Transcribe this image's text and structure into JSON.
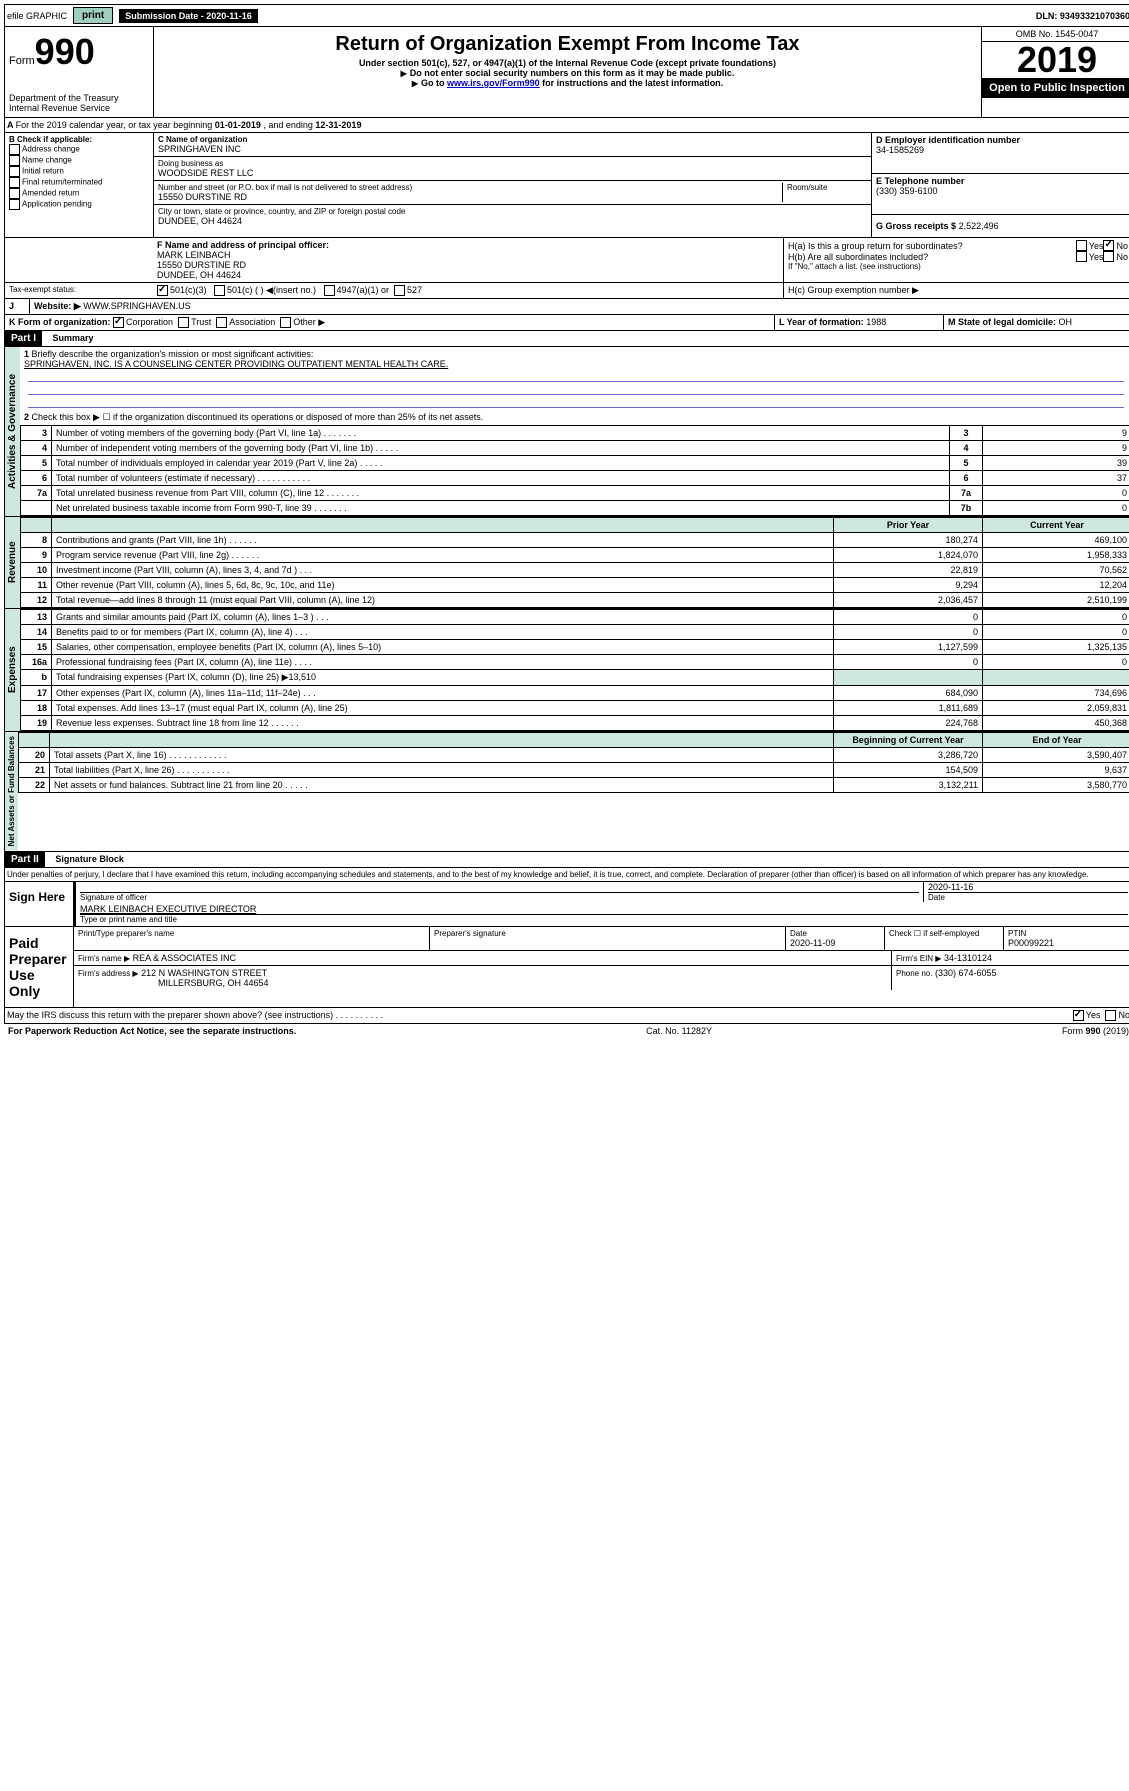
{
  "topbar": {
    "efile": "efile GRAPHIC",
    "print": "print",
    "subdate_label": "Submission Date - 2020-11-16",
    "dln": "DLN: 93493321070360"
  },
  "header": {
    "form_label": "Form",
    "form_number": "990",
    "dept": "Department of the Treasury\nInternal Revenue Service",
    "title": "Return of Organization Exempt From Income Tax",
    "subtitle": "Under section 501(c), 527, or 4947(a)(1) of the Internal Revenue Code (except private foundations)",
    "note1": "Do not enter social security numbers on this form as it may be made public.",
    "note2_pre": "Go to ",
    "note2_link": "www.irs.gov/Form990",
    "note2_post": " for instructions and the latest information.",
    "omb": "OMB No. 1545-0047",
    "year": "2019",
    "open_public": "Open to Public Inspection"
  },
  "period": {
    "text_a": "For the 2019 calendar year, or tax year beginning ",
    "begin": "01-01-2019",
    "text_mid": " , and ending ",
    "end": "12-31-2019"
  },
  "sectionB": {
    "label": "B Check if applicable:",
    "items": [
      "Address change",
      "Name change",
      "Initial return",
      "Final return/terminated",
      "Amended return",
      "Application pending"
    ]
  },
  "sectionC": {
    "name_label": "C Name of organization",
    "name": "SPRINGHAVEN INC",
    "dba_label": "Doing business as",
    "dba": "WOODSIDE REST LLC",
    "addr_label": "Number and street (or P.O. box if mail is not delivered to street address)",
    "room_label": "Room/suite",
    "addr": "15550 DURSTINE RD",
    "city_label": "City or town, state or province, country, and ZIP or foreign postal code",
    "city": "DUNDEE, OH  44624"
  },
  "sectionD": {
    "label": "D Employer identification number",
    "value": "34-1585269"
  },
  "sectionE": {
    "label": "E Telephone number",
    "value": "(330) 359-6100"
  },
  "sectionG": {
    "label": "G Gross receipts $",
    "value": "2,522,496"
  },
  "sectionF": {
    "label": "F  Name and address of principal officer:",
    "name": "MARK LEINBACH",
    "addr1": "15550 DURSTINE RD",
    "addr2": "DUNDEE, OH  44624"
  },
  "sectionH": {
    "a_label": "H(a)  Is this a group return for subordinates?",
    "b_label": "H(b)  Are all subordinates included?",
    "note": "If \"No,\" attach a list. (see instructions)",
    "c_label": "H(c)  Group exemption number ▶",
    "yes": "Yes",
    "no": "No"
  },
  "taxexempt": {
    "label": "Tax-exempt status:",
    "opt1": "501(c)(3)",
    "opt2": "501(c) (  ) ◀(insert no.)",
    "opt3": "4947(a)(1) or",
    "opt4": "527"
  },
  "sectionJ": {
    "label": "J",
    "website_label": "Website: ▶",
    "value": "WWW.SPRINGHAVEN.US"
  },
  "sectionK": {
    "label": "K Form of organization:",
    "corp": "Corporation",
    "trust": "Trust",
    "assoc": "Association",
    "other": "Other ▶"
  },
  "sectionL": {
    "label": "L Year of formation:",
    "value": "1988"
  },
  "sectionM": {
    "label": "M State of legal domicile:",
    "value": "OH"
  },
  "part1": {
    "header": "Part I",
    "title": "Summary",
    "line1_label": "Briefly describe the organization's mission or most significant activities:",
    "line1_text": "SPRINGHAVEN, INC. IS A COUNSELING CENTER PROVIDING OUTPATIENT MENTAL HEALTH CARE.",
    "line2": "Check this box ▶ ☐  if the organization discontinued its operations or disposed of more than 25% of its net assets.",
    "sections": {
      "gov": "Activities & Governance",
      "rev": "Revenue",
      "exp": "Expenses",
      "net": "Net Assets or Fund Balances"
    },
    "col_prior": "Prior Year",
    "col_current": "Current Year",
    "col_begin": "Beginning of Current Year",
    "col_end": "End of Year",
    "rows_gov": [
      {
        "n": "3",
        "label": "Number of voting members of the governing body (Part VI, line 1a)  .   .   .   .   .   .   .",
        "box": "3",
        "val": "9"
      },
      {
        "n": "4",
        "label": "Number of independent voting members of the governing body (Part VI, line 1b)  .   .   .   .   .",
        "box": "4",
        "val": "9"
      },
      {
        "n": "5",
        "label": "Total number of individuals employed in calendar year 2019 (Part V, line 2a)  .   .   .   .   .",
        "box": "5",
        "val": "39"
      },
      {
        "n": "6",
        "label": "Total number of volunteers (estimate if necessary)  .   .   .   .   .   .   .   .   .   .   .",
        "box": "6",
        "val": "37"
      },
      {
        "n": "7a",
        "label": "Total unrelated business revenue from Part VIII, column (C), line 12  .   .   .   .   .   .   .",
        "box": "7a",
        "val": "0"
      },
      {
        "n": "",
        "label": "Net unrelated business taxable income from Form 990-T, line 39  .   .   .   .   .   .   .",
        "box": "7b",
        "val": "0"
      }
    ],
    "rows_rev": [
      {
        "n": "8",
        "label": "Contributions and grants (Part VIII, line 1h)  .   .   .   .   .   .",
        "p": "180,274",
        "c": "469,100"
      },
      {
        "n": "9",
        "label": "Program service revenue (Part VIII, line 2g)  .   .   .   .   .   .",
        "p": "1,824,070",
        "c": "1,958,333"
      },
      {
        "n": "10",
        "label": "Investment income (Part VIII, column (A), lines 3, 4, and 7d )  .   .   .",
        "p": "22,819",
        "c": "70,562"
      },
      {
        "n": "11",
        "label": "Other revenue (Part VIII, column (A), lines 5, 6d, 8c, 9c, 10c, and 11e)",
        "p": "9,294",
        "c": "12,204"
      },
      {
        "n": "12",
        "label": "Total revenue—add lines 8 through 11 (must equal Part VIII, column (A), line 12)",
        "p": "2,036,457",
        "c": "2,510,199"
      }
    ],
    "rows_exp": [
      {
        "n": "13",
        "label": "Grants and similar amounts paid (Part IX, column (A), lines 1–3 )  .   .   .",
        "p": "0",
        "c": "0"
      },
      {
        "n": "14",
        "label": "Benefits paid to or for members (Part IX, column (A), line 4)  .   .   .",
        "p": "0",
        "c": "0"
      },
      {
        "n": "15",
        "label": "Salaries, other compensation, employee benefits (Part IX, column (A), lines 5–10)",
        "p": "1,127,599",
        "c": "1,325,135"
      },
      {
        "n": "16a",
        "label": "Professional fundraising fees (Part IX, column (A), line 11e)  .   .   .   .",
        "p": "0",
        "c": "0"
      },
      {
        "n": "b",
        "label": "Total fundraising expenses (Part IX, column (D), line 25) ▶13,510",
        "p": "",
        "c": "",
        "shade": true
      },
      {
        "n": "17",
        "label": "Other expenses (Part IX, column (A), lines 11a–11d, 11f–24e)  .   .   .",
        "p": "684,090",
        "c": "734,696"
      },
      {
        "n": "18",
        "label": "Total expenses. Add lines 13–17 (must equal Part IX, column (A), line 25)",
        "p": "1,811,689",
        "c": "2,059,831"
      },
      {
        "n": "19",
        "label": "Revenue less expenses. Subtract line 18 from line 12  .   .   .   .   .   .",
        "p": "224,768",
        "c": "450,368"
      }
    ],
    "rows_net": [
      {
        "n": "20",
        "label": "Total assets (Part X, line 16)  .   .   .   .   .   .   .   .   .   .   .   .",
        "p": "3,286,720",
        "c": "3,590,407"
      },
      {
        "n": "21",
        "label": "Total liabilities (Part X, line 26)  .   .   .   .   .   .   .   .   .   .   .",
        "p": "154,509",
        "c": "9,637"
      },
      {
        "n": "22",
        "label": "Net assets or fund balances. Subtract line 21 from line 20  .   .   .   .   .",
        "p": "3,132,211",
        "c": "3,580,770"
      }
    ]
  },
  "part2": {
    "header": "Part II",
    "title": "Signature Block",
    "penalty": "Under penalties of perjury, I declare that I have examined this return, including accompanying schedules and statements, and to the best of my knowledge and belief, it is true, correct, and complete. Declaration of preparer (other than officer) is based on all information of which preparer has any knowledge.",
    "sign_here": "Sign Here",
    "sig_officer": "Signature of officer",
    "sig_date": "2020-11-16",
    "date_label": "Date",
    "officer_name": "MARK LEINBACH  EXECUTIVE DIRECTOR",
    "type_name": "Type or print name and title",
    "paid": "Paid Preparer Use Only",
    "prep_name_label": "Print/Type preparer's name",
    "prep_sig_label": "Preparer's signature",
    "prep_date_label": "Date",
    "prep_date": "2020-11-09",
    "check_self": "Check ☐ if self-employed",
    "ptin_label": "PTIN",
    "ptin": "P00099221",
    "firm_name_label": "Firm's name    ▶",
    "firm_name": "REA & ASSOCIATES INC",
    "firm_ein_label": "Firm's EIN ▶",
    "firm_ein": "34-1310124",
    "firm_addr_label": "Firm's address ▶",
    "firm_addr1": "212 N WASHINGTON STREET",
    "firm_addr2": "MILLERSBURG, OH  44654",
    "phone_label": "Phone no.",
    "phone": "(330) 674-6055",
    "discuss": "May the IRS discuss this return with the preparer shown above? (see instructions)  .   .   .   .   .   .   .   .   .   .",
    "yes": "Yes",
    "no": "No"
  },
  "footer": {
    "paperwork": "For Paperwork Reduction Act Notice, see the separate instructions.",
    "cat": "Cat. No. 11282Y",
    "form": "Form 990 (2019)"
  }
}
